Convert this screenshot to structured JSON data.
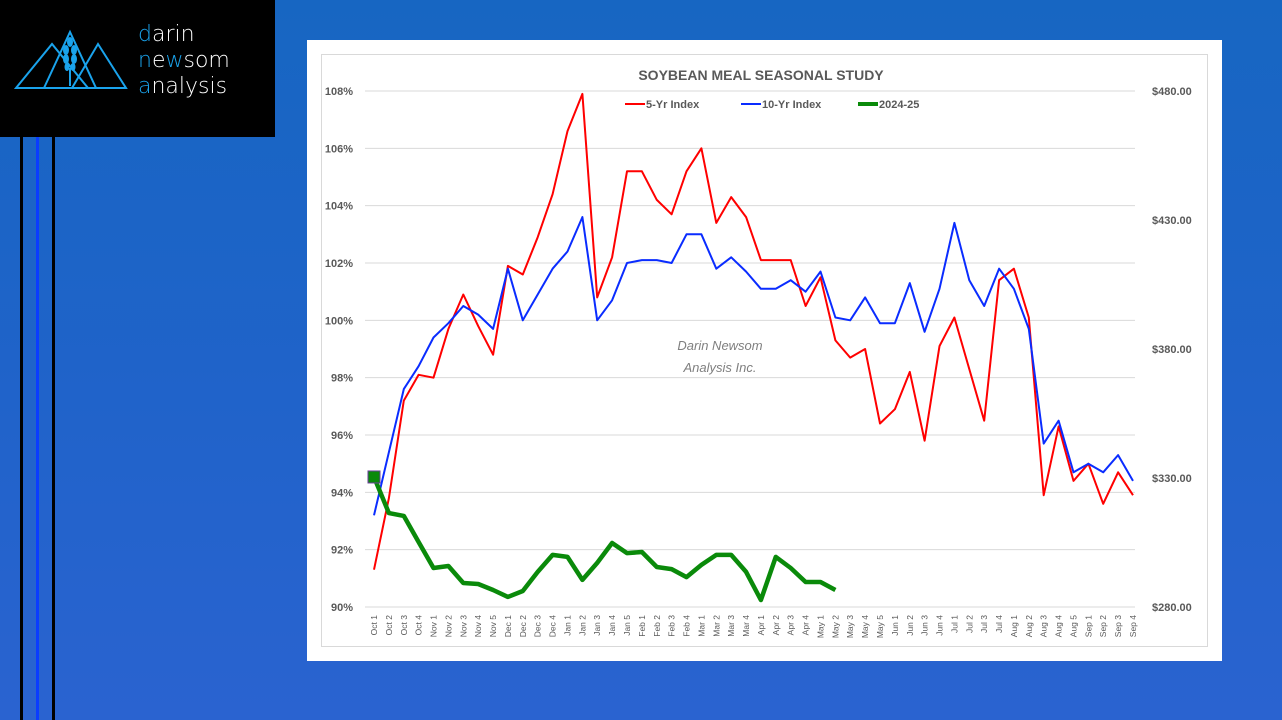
{
  "brand": {
    "line1_accent": "d",
    "line1_rest": "arin",
    "line2_accent": "new",
    "line2_rest": "som",
    "line2_prefix_accent": "n",
    "line2_mid_accent": "ew",
    "line3_accent": "a",
    "line3_rest": "nalysis",
    "accent_color": "#1aa3ec"
  },
  "chart_data": {
    "type": "line",
    "title": "SOYBEAN MEAL SEASONAL STUDY",
    "xlabel": "",
    "ylabel": "",
    "y_left": {
      "min": 90,
      "max": 108,
      "step": 2,
      "tick_labels": [
        "90%",
        "92%",
        "94%",
        "96%",
        "98%",
        "100%",
        "102%",
        "104%",
        "106%",
        "108%"
      ]
    },
    "y_right": {
      "min": 280,
      "max": 480,
      "step": 50,
      "tick_labels": [
        "$280.00",
        "$330.00",
        "$380.00",
        "$430.00",
        "$480.00"
      ]
    },
    "grid": true,
    "legend_position": "top-center",
    "watermark": [
      "Darin Newsom",
      "Analysis Inc."
    ],
    "categories": [
      "Oct 1",
      "Oct 2",
      "Oct 3",
      "Oct 4",
      "Nov 1",
      "Nov 2",
      "Nov 3",
      "Nov 4",
      "Nov 5",
      "Dec 1",
      "Dec 2",
      "Dec 3",
      "Dec 4",
      "Jan 1",
      "Jan 2",
      "Jan 3",
      "Jan 4",
      "Jan 5",
      "Feb 1",
      "Feb 2",
      "Feb 3",
      "Feb 4",
      "Mar 1",
      "Mar 2",
      "Mar 3",
      "Mar 4",
      "Apr 1",
      "Apr 2",
      "Apr 3",
      "Apr 4",
      "May 1",
      "May 2",
      "May 3",
      "May 4",
      "May 5",
      "Jun 1",
      "Jun 2",
      "Jun 3",
      "Jun 4",
      "Jul 1",
      "Jul 2",
      "Jul 3",
      "Jul 4",
      "Aug 1",
      "Aug 2",
      "Aug 3",
      "Aug 4",
      "Aug 5",
      "Sep 1",
      "Sep 2",
      "Sep 3",
      "Sep 4"
    ],
    "series": [
      {
        "name": "5-Yr Index",
        "axis": "left",
        "color": "#ff0000",
        "unit": "%",
        "values": [
          91.3,
          93.8,
          97.2,
          98.1,
          98.0,
          99.7,
          100.9,
          99.8,
          98.8,
          101.9,
          101.6,
          102.9,
          104.4,
          106.6,
          107.9,
          100.8,
          102.2,
          105.2,
          105.2,
          104.2,
          103.7,
          105.2,
          106.0,
          103.4,
          104.3,
          103.6,
          102.1,
          102.1,
          102.1,
          100.5,
          101.5,
          99.3,
          98.7,
          99.0,
          96.4,
          96.9,
          98.2,
          95.8,
          99.1,
          100.1,
          98.3,
          96.5,
          101.4,
          101.8,
          100.1,
          93.9,
          96.3,
          94.4,
          95.0,
          93.6,
          94.7,
          93.9
        ]
      },
      {
        "name": "10-Yr Index",
        "axis": "left",
        "color": "#0a2cff",
        "unit": "%",
        "values": [
          93.2,
          95.4,
          97.6,
          98.4,
          99.4,
          99.9,
          100.5,
          100.2,
          99.7,
          101.8,
          100.0,
          100.9,
          101.8,
          102.4,
          103.6,
          100.0,
          100.7,
          102.0,
          102.1,
          102.1,
          102.0,
          103.0,
          103.0,
          101.8,
          102.2,
          101.7,
          101.1,
          101.1,
          101.4,
          101.0,
          101.7,
          100.1,
          100.0,
          100.8,
          99.9,
          99.9,
          101.3,
          99.6,
          101.1,
          103.4,
          101.4,
          100.5,
          101.8,
          101.1,
          99.7,
          95.7,
          96.5,
          94.7,
          95.0,
          94.7,
          95.3,
          94.4
        ]
      },
      {
        "name": "2024-25",
        "axis": "right",
        "color": "#0a8a0a",
        "unit": "$",
        "first_point_marker": "square",
        "values": [
          330.4,
          316.4,
          315.3,
          305.2,
          295.1,
          295.9,
          289.3,
          288.9,
          286.6,
          283.9,
          286.2,
          293.6,
          300.2,
          299.4,
          290.5,
          297.1,
          304.8,
          300.9,
          301.3,
          295.5,
          294.7,
          291.6,
          296.3,
          300.2,
          300.2,
          293.6,
          282.7,
          299.4,
          295.1,
          289.7,
          289.7,
          286.6
        ]
      }
    ]
  }
}
